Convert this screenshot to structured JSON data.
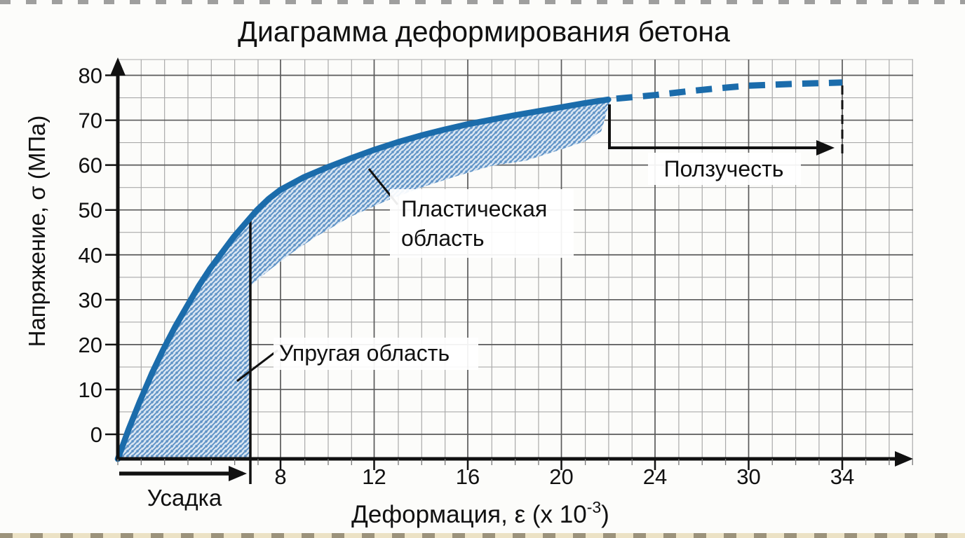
{
  "chart_data": {
    "type": "line",
    "title": "Диаграмма деформирования бетона",
    "xlabel": "Деформация, ε (x 10⁻³)",
    "xlabel_parts": {
      "pre": "Деформация, ε (x 10",
      "sup": "-3",
      "post": ")"
    },
    "ylabel": "Напряжение, σ (МПа)",
    "x_ticks": [
      8,
      12,
      16,
      20,
      24,
      30,
      34
    ],
    "y_ticks": [
      0,
      10,
      20,
      30,
      40,
      50,
      60,
      70,
      80
    ],
    "xlim": [
      0,
      36
    ],
    "ylim": [
      -5.5,
      84
    ],
    "grid": true,
    "legend": "none",
    "colors": {
      "curve": "#1b6cab",
      "hatch_line": "#5f93c6",
      "hatch_bg": "#dbe7f3",
      "grid_major": "#5a5a5a",
      "grid_minor": "#aaaaaa",
      "ink": "#111111"
    },
    "series": [
      {
        "style": "solid",
        "points": [
          [
            1.05,
            -5.5
          ],
          [
            1.5,
            1
          ],
          [
            2,
            7.5
          ],
          [
            2.5,
            13.5
          ],
          [
            3,
            19
          ],
          [
            3.5,
            24
          ],
          [
            4,
            28.5
          ],
          [
            4.5,
            33
          ],
          [
            5,
            37
          ],
          [
            5.5,
            40.5
          ],
          [
            6,
            44
          ],
          [
            6.5,
            47
          ],
          [
            7,
            50
          ],
          [
            7.5,
            52.5
          ],
          [
            8,
            54.5
          ],
          [
            9,
            57.3
          ],
          [
            10,
            59.5
          ],
          [
            11,
            61.5
          ],
          [
            12,
            63.4
          ],
          [
            13,
            65.1
          ],
          [
            14,
            66.6
          ],
          [
            15,
            67.9
          ],
          [
            16,
            69.1
          ],
          [
            17,
            70.1
          ],
          [
            18,
            71.1
          ],
          [
            19,
            72
          ],
          [
            20,
            72.9
          ],
          [
            21,
            73.8
          ],
          [
            22,
            74.6
          ]
        ]
      },
      {
        "style": "dashed",
        "points": [
          [
            22.35,
            74.8
          ],
          [
            24,
            75.6
          ],
          [
            26,
            76.4
          ],
          [
            28,
            77.1
          ],
          [
            30,
            77.7
          ],
          [
            32,
            78.1
          ],
          [
            34,
            78.4
          ]
        ]
      }
    ],
    "regions": {
      "elastic": {
        "label": "Упругая область",
        "boundary_strain": 6.7,
        "sigma_top": 48.2,
        "sigma_bottom": -5.5
      },
      "plastic": {
        "label": "Пластическая область",
        "lower_boundary": [
          [
            6.7,
            33
          ],
          [
            7.5,
            36.5
          ],
          [
            8.5,
            40.5
          ],
          [
            9.5,
            44
          ],
          [
            11,
            48.5
          ],
          [
            12.5,
            52
          ],
          [
            14,
            55
          ],
          [
            15.5,
            57.5
          ],
          [
            17,
            59.8
          ],
          [
            18.5,
            61
          ],
          [
            20,
            63.5
          ],
          [
            21,
            65.3
          ],
          [
            21.7,
            67.5
          ],
          [
            22.05,
            73.8
          ]
        ]
      }
    },
    "annotations": {
      "creep": "Ползучесть",
      "shrinkage": "Усадка",
      "elastic_label": "Упругая область",
      "plastic_label_line1": "Пластическая",
      "plastic_label_line2": "область"
    }
  }
}
